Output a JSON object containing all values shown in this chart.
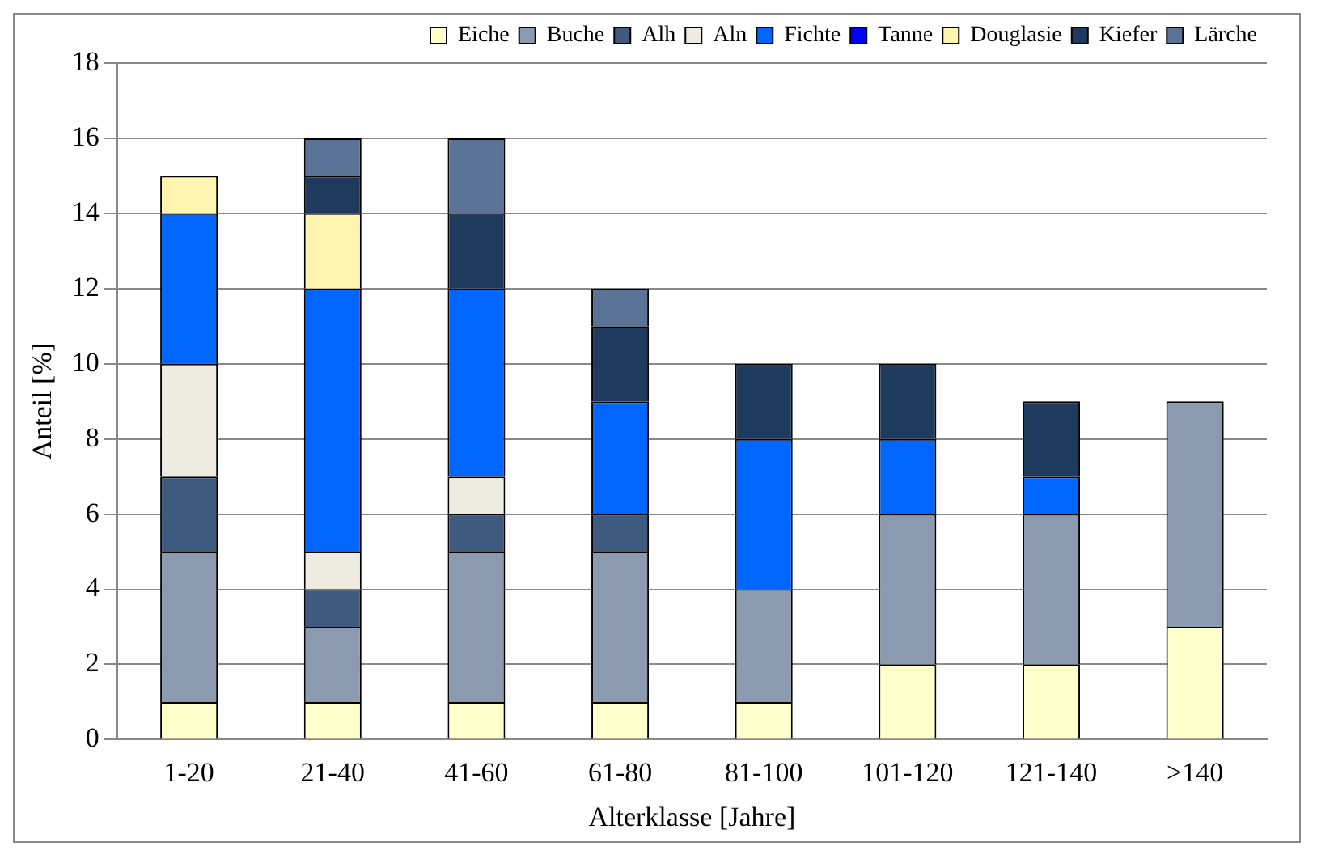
{
  "chart_data": {
    "type": "bar",
    "stacked": true,
    "xlabel": "Alterklasse [Jahre]",
    "ylabel": "Anteil [%]",
    "categories": [
      "1-20",
      "21-40",
      "41-60",
      "61-80",
      "81-100",
      "101-120",
      "121-140",
      ">140"
    ],
    "series": [
      {
        "name": "Eiche",
        "color": "#ffffcc",
        "values": [
          1,
          1,
          1,
          1,
          1,
          2,
          2,
          3
        ]
      },
      {
        "name": "Buche",
        "color": "#8c9ab0",
        "values": [
          4,
          2,
          4,
          4,
          3,
          4,
          4,
          6
        ]
      },
      {
        "name": "Alh",
        "color": "#3e5a7e",
        "values": [
          2,
          1,
          1,
          1,
          0,
          0,
          0,
          0
        ]
      },
      {
        "name": "Aln",
        "color": "#eeece1",
        "values": [
          3,
          1,
          1,
          0,
          0,
          0,
          0,
          0
        ]
      },
      {
        "name": "Fichte",
        "color": "#0066ff",
        "values": [
          4,
          7,
          5,
          3,
          4,
          2,
          1,
          0
        ]
      },
      {
        "name": "Tanne",
        "color": "#0000ff",
        "values": [
          0,
          0,
          0,
          0,
          0,
          0,
          0,
          0
        ]
      },
      {
        "name": "Douglasie",
        "color": "#fff5b0",
        "values": [
          1,
          2,
          0,
          0,
          0,
          0,
          0,
          0
        ]
      },
      {
        "name": "Kiefer",
        "color": "#1f3a5f",
        "values": [
          0,
          1,
          2,
          2,
          2,
          2,
          2,
          0
        ]
      },
      {
        "name": "Lärche",
        "color": "#5a7396",
        "values": [
          0,
          1,
          2,
          1,
          0,
          0,
          0,
          0
        ]
      }
    ],
    "ylim": [
      0,
      18
    ],
    "yticks": [
      0,
      2,
      4,
      6,
      8,
      10,
      12,
      14,
      16,
      18
    ],
    "grid": "y",
    "legend": "top right"
  }
}
